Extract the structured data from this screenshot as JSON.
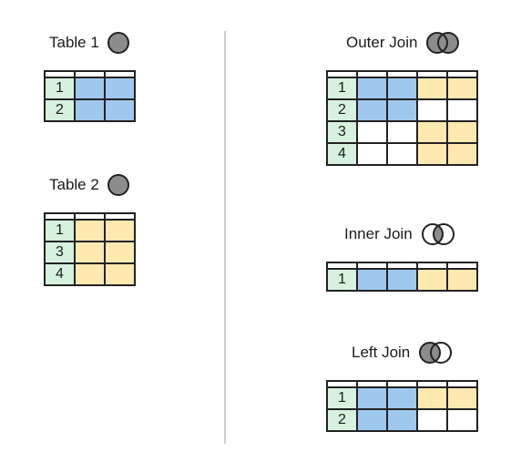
{
  "colors": {
    "key_cell": "#d7f1df",
    "table1_cell": "#9fc8ef",
    "table2_cell": "#fde8b0",
    "empty_cell": "#ffffff",
    "icon_fill": "#8c8c8c",
    "divider": "#cfcfcf"
  },
  "table1": {
    "title": "Table 1",
    "icon": "circle-icon",
    "rows": [
      {
        "key": "1",
        "cells": [
          "blue",
          "blue"
        ]
      },
      {
        "key": "2",
        "cells": [
          "blue",
          "blue"
        ]
      }
    ]
  },
  "table2": {
    "title": "Table 2",
    "icon": "circle-icon",
    "rows": [
      {
        "key": "1",
        "cells": [
          "yellow",
          "yellow"
        ]
      },
      {
        "key": "3",
        "cells": [
          "yellow",
          "yellow"
        ]
      },
      {
        "key": "4",
        "cells": [
          "yellow",
          "yellow"
        ]
      }
    ]
  },
  "outer_join": {
    "title": "Outer Join",
    "icon": "venn-union-icon",
    "rows": [
      {
        "key": "1",
        "cells": [
          "blue",
          "blue",
          "yellow",
          "yellow"
        ]
      },
      {
        "key": "2",
        "cells": [
          "blue",
          "blue",
          "empty",
          "empty"
        ]
      },
      {
        "key": "3",
        "cells": [
          "empty",
          "empty",
          "yellow",
          "yellow"
        ]
      },
      {
        "key": "4",
        "cells": [
          "empty",
          "empty",
          "yellow",
          "yellow"
        ]
      }
    ]
  },
  "inner_join": {
    "title": "Inner Join",
    "icon": "venn-intersection-icon",
    "rows": [
      {
        "key": "1",
        "cells": [
          "blue",
          "blue",
          "yellow",
          "yellow"
        ]
      }
    ]
  },
  "left_join": {
    "title": "Left Join",
    "icon": "venn-left-icon",
    "rows": [
      {
        "key": "1",
        "cells": [
          "blue",
          "blue",
          "yellow",
          "yellow"
        ]
      },
      {
        "key": "2",
        "cells": [
          "blue",
          "blue",
          "empty",
          "empty"
        ]
      }
    ]
  }
}
